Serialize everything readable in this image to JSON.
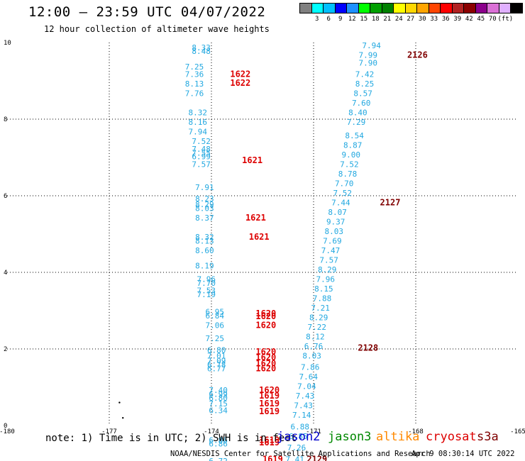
{
  "header": {
    "title": "12:00 – 23:59 UTC 04/07/2022",
    "subtitle": "12 hour collection of altimeter wave heights"
  },
  "scale": {
    "unit_label": "(ft)",
    "colors": [
      "#808080",
      "#00ffff",
      "#00bfff",
      "#0000ff",
      "#1e90ff",
      "#00ff00",
      "#00a000",
      "#008000",
      "#ffff00",
      "#ffd700",
      "#ffa500",
      "#ff4500",
      "#ff0000",
      "#b22222",
      "#8b0000",
      "#8b008b",
      "#da70d6",
      "#e0b0ff",
      "#000000"
    ],
    "labels": [
      "3",
      "6",
      "9",
      "12",
      "15",
      "18",
      "21",
      "24",
      "27",
      "30",
      "33",
      "36",
      "39",
      "42",
      "45",
      "70"
    ]
  },
  "footer": {
    "note": "note: 1) Time is in UTC; 2) SWH is in feet",
    "satellites": [
      {
        "name": "jason2",
        "color": "#0000cc"
      },
      {
        "name": "jason3",
        "color": "#008800"
      },
      {
        "name": "altika",
        "color": "#ff8800"
      },
      {
        "name": "cryosat",
        "color": "#dd0000"
      },
      {
        "name": "s3a",
        "color": "#800000"
      }
    ],
    "credit": "NOAA/NESDIS Center for Satellite Applications and Research",
    "timestamp": "Apr  9 08:30:14 UTC 2022"
  },
  "chart_data": {
    "type": "scatter",
    "title": "12:00 – 23:59 UTC 04/07/2022",
    "subtitle": "12 hour collection of altimeter wave heights",
    "xlim": [
      -180,
      -165
    ],
    "ylim": [
      0,
      10
    ],
    "x_ticks": [
      "-180",
      "-177",
      "-174",
      "-171",
      "-168",
      "-165"
    ],
    "y_ticks": [
      "0",
      "2",
      "4",
      "6",
      "8",
      "10"
    ],
    "grid": true,
    "value_color": "#22a8e0",
    "time_colors": {
      "cryosat": "#dd0000",
      "s3a": "#800000"
    },
    "track_west": [
      {
        "lon": -174.3,
        "lat": 9.8,
        "v": "8.33"
      },
      {
        "lon": -174.3,
        "lat": 9.7,
        "v": "8.48"
      },
      {
        "lon": -174.5,
        "lat": 9.3,
        "v": "7.25"
      },
      {
        "lon": -174.5,
        "lat": 9.1,
        "v": "7.36"
      },
      {
        "lon": -174.5,
        "lat": 8.85,
        "v": "8.13"
      },
      {
        "lon": -174.5,
        "lat": 8.6,
        "v": "7.76"
      },
      {
        "lon": -174.4,
        "lat": 8.1,
        "v": "8.32"
      },
      {
        "lon": -174.4,
        "lat": 7.85,
        "v": "8.16"
      },
      {
        "lon": -174.4,
        "lat": 7.6,
        "v": "7.94"
      },
      {
        "lon": -174.3,
        "lat": 7.35,
        "v": "7.52"
      },
      {
        "lon": -174.3,
        "lat": 7.15,
        "v": "7.48"
      },
      {
        "lon": -174.3,
        "lat": 7.05,
        "v": "7.55"
      },
      {
        "lon": -174.3,
        "lat": 6.95,
        "v": "6.99"
      },
      {
        "lon": -174.3,
        "lat": 6.75,
        "v": "7.57"
      },
      {
        "lon": -174.2,
        "lat": 6.15,
        "v": "7.91"
      },
      {
        "lon": -174.2,
        "lat": 5.85,
        "v": "8.23"
      },
      {
        "lon": -174.2,
        "lat": 5.7,
        "v": "8.29"
      },
      {
        "lon": -174.2,
        "lat": 5.6,
        "v": "8.03"
      },
      {
        "lon": -174.2,
        "lat": 5.35,
        "v": "8.37"
      },
      {
        "lon": -174.2,
        "lat": 4.85,
        "v": "8.32"
      },
      {
        "lon": -174.2,
        "lat": 4.75,
        "v": "8.13"
      },
      {
        "lon": -174.2,
        "lat": 4.5,
        "v": "8.60"
      },
      {
        "lon": -174.2,
        "lat": 4.1,
        "v": "8.19"
      },
      {
        "lon": -174.15,
        "lat": 3.75,
        "v": "7.96"
      },
      {
        "lon": -174.15,
        "lat": 3.65,
        "v": "7.70"
      },
      {
        "lon": -174.15,
        "lat": 3.45,
        "v": "7.53"
      },
      {
        "lon": -174.15,
        "lat": 3.35,
        "v": "7.19"
      },
      {
        "lon": -173.9,
        "lat": 2.9,
        "v": "6.95"
      },
      {
        "lon": -173.9,
        "lat": 2.8,
        "v": "6.84"
      },
      {
        "lon": -173.9,
        "lat": 2.55,
        "v": "7.06"
      },
      {
        "lon": -173.9,
        "lat": 2.2,
        "v": "7.25"
      },
      {
        "lon": -173.85,
        "lat": 1.9,
        "v": "6.80"
      },
      {
        "lon": -173.85,
        "lat": 1.75,
        "v": "7.01"
      },
      {
        "lon": -173.85,
        "lat": 1.62,
        "v": "7.09"
      },
      {
        "lon": -173.85,
        "lat": 1.52,
        "v": "6.78"
      },
      {
        "lon": -173.85,
        "lat": 1.42,
        "v": "6.77"
      },
      {
        "lon": -173.8,
        "lat": 0.85,
        "v": "7.40"
      },
      {
        "lon": -173.8,
        "lat": 0.75,
        "v": "6.99"
      },
      {
        "lon": -173.8,
        "lat": 0.65,
        "v": "6.80"
      },
      {
        "lon": -173.8,
        "lat": 0.5,
        "v": "7.15"
      },
      {
        "lon": -173.8,
        "lat": 0.32,
        "v": "6.34"
      },
      {
        "lon": -173.8,
        "lat": -0.45,
        "v": "6.86"
      },
      {
        "lon": -173.8,
        "lat": -0.55,
        "v": "6.86"
      },
      {
        "lon": -173.8,
        "lat": -1.0,
        "v": "6.72"
      }
    ],
    "track_west_times": [
      {
        "lon": -173.15,
        "lat": 9.1,
        "t": "1622"
      },
      {
        "lon": -173.15,
        "lat": 8.87,
        "t": "1622"
      },
      {
        "lon": -172.8,
        "lat": 6.85,
        "t": "1621"
      },
      {
        "lon": -172.7,
        "lat": 5.35,
        "t": "1621"
      },
      {
        "lon": -172.6,
        "lat": 4.85,
        "t": "1621"
      },
      {
        "lon": -172.4,
        "lat": 2.85,
        "t": "1620"
      },
      {
        "lon": -172.4,
        "lat": 2.78,
        "t": "1620"
      },
      {
        "lon": -172.4,
        "lat": 2.55,
        "t": "1620"
      },
      {
        "lon": -172.4,
        "lat": 1.85,
        "t": "1620"
      },
      {
        "lon": -172.4,
        "lat": 1.7,
        "t": "1620"
      },
      {
        "lon": -172.4,
        "lat": 1.55,
        "t": "1620"
      },
      {
        "lon": -172.4,
        "lat": 1.42,
        "t": "1620"
      },
      {
        "lon": -172.3,
        "lat": 0.85,
        "t": "1620"
      },
      {
        "lon": -172.3,
        "lat": 0.7,
        "t": "1619"
      },
      {
        "lon": -172.3,
        "lat": 0.5,
        "t": "1619"
      },
      {
        "lon": -172.3,
        "lat": 0.3,
        "t": "1619"
      },
      {
        "lon": -172.3,
        "lat": -0.45,
        "t": "1619"
      },
      {
        "lon": -172.3,
        "lat": -0.52,
        "t": "1619"
      },
      {
        "lon": -172.2,
        "lat": -0.95,
        "t": "1619"
      }
    ],
    "track_east": [
      {
        "lon": -169.3,
        "lat": 9.85,
        "v": "7.94"
      },
      {
        "lon": -169.4,
        "lat": 9.6,
        "v": "7.99"
      },
      {
        "lon": -169.4,
        "lat": 9.4,
        "v": "7.90"
      },
      {
        "lon": -169.5,
        "lat": 9.1,
        "v": "7.42"
      },
      {
        "lon": -169.5,
        "lat": 8.85,
        "v": "8.25"
      },
      {
        "lon": -169.55,
        "lat": 8.6,
        "v": "8.57"
      },
      {
        "lon": -169.6,
        "lat": 8.35,
        "v": "7.60"
      },
      {
        "lon": -169.7,
        "lat": 8.1,
        "v": "8.40"
      },
      {
        "lon": -169.75,
        "lat": 7.85,
        "v": "7.29"
      },
      {
        "lon": -169.8,
        "lat": 7.5,
        "v": "8.54"
      },
      {
        "lon": -169.85,
        "lat": 7.25,
        "v": "8.87"
      },
      {
        "lon": -169.9,
        "lat": 7.0,
        "v": "9.00"
      },
      {
        "lon": -169.95,
        "lat": 6.75,
        "v": "7.52"
      },
      {
        "lon": -170.0,
        "lat": 6.5,
        "v": "8.78"
      },
      {
        "lon": -170.1,
        "lat": 6.25,
        "v": "7.70"
      },
      {
        "lon": -170.15,
        "lat": 6.0,
        "v": "7.52"
      },
      {
        "lon": -170.2,
        "lat": 5.75,
        "v": "7.44"
      },
      {
        "lon": -170.3,
        "lat": 5.5,
        "v": "8.07"
      },
      {
        "lon": -170.35,
        "lat": 5.25,
        "v": "9.37"
      },
      {
        "lon": -170.4,
        "lat": 5.0,
        "v": "8.03"
      },
      {
        "lon": -170.45,
        "lat": 4.75,
        "v": "7.69"
      },
      {
        "lon": -170.5,
        "lat": 4.5,
        "v": "7.47"
      },
      {
        "lon": -170.55,
        "lat": 4.25,
        "v": "7.57"
      },
      {
        "lon": -170.6,
        "lat": 4.0,
        "v": "8.29"
      },
      {
        "lon": -170.65,
        "lat": 3.75,
        "v": "7.96"
      },
      {
        "lon": -170.7,
        "lat": 3.5,
        "v": "8.15"
      },
      {
        "lon": -170.75,
        "lat": 3.25,
        "v": "7.88"
      },
      {
        "lon": -170.8,
        "lat": 3.0,
        "v": "7.21"
      },
      {
        "lon": -170.85,
        "lat": 2.75,
        "v": "8.29"
      },
      {
        "lon": -170.9,
        "lat": 2.5,
        "v": "7.22"
      },
      {
        "lon": -170.95,
        "lat": 2.25,
        "v": "8.12"
      },
      {
        "lon": -171.0,
        "lat": 2.0,
        "v": "6.76"
      },
      {
        "lon": -171.05,
        "lat": 1.75,
        "v": "8.03"
      },
      {
        "lon": -171.1,
        "lat": 1.45,
        "v": "7.86"
      },
      {
        "lon": -171.15,
        "lat": 1.2,
        "v": "7.64"
      },
      {
        "lon": -171.2,
        "lat": 0.95,
        "v": "7.04"
      },
      {
        "lon": -171.25,
        "lat": 0.7,
        "v": "7.43"
      },
      {
        "lon": -171.3,
        "lat": 0.45,
        "v": "7.43"
      },
      {
        "lon": -171.35,
        "lat": 0.2,
        "v": "7.14"
      },
      {
        "lon": -171.4,
        "lat": -0.1,
        "v": "6.88"
      },
      {
        "lon": -171.45,
        "lat": -0.35,
        "v": "6.85"
      },
      {
        "lon": -171.5,
        "lat": -0.65,
        "v": "7.26"
      },
      {
        "lon": -171.55,
        "lat": -0.95,
        "v": "7.41"
      }
    ],
    "track_east_times": [
      {
        "lon": -167.95,
        "lat": 9.6,
        "t": "2126"
      },
      {
        "lon": -168.75,
        "lat": 5.75,
        "t": "2127"
      },
      {
        "lon": -169.4,
        "lat": 1.95,
        "t": "2128"
      },
      {
        "lon": -170.9,
        "lat": -0.95,
        "t": "2129"
      }
    ],
    "dots": [
      {
        "lon": -176.7,
        "lat": 0.6
      },
      {
        "lon": -176.6,
        "lat": 0.2
      }
    ]
  }
}
